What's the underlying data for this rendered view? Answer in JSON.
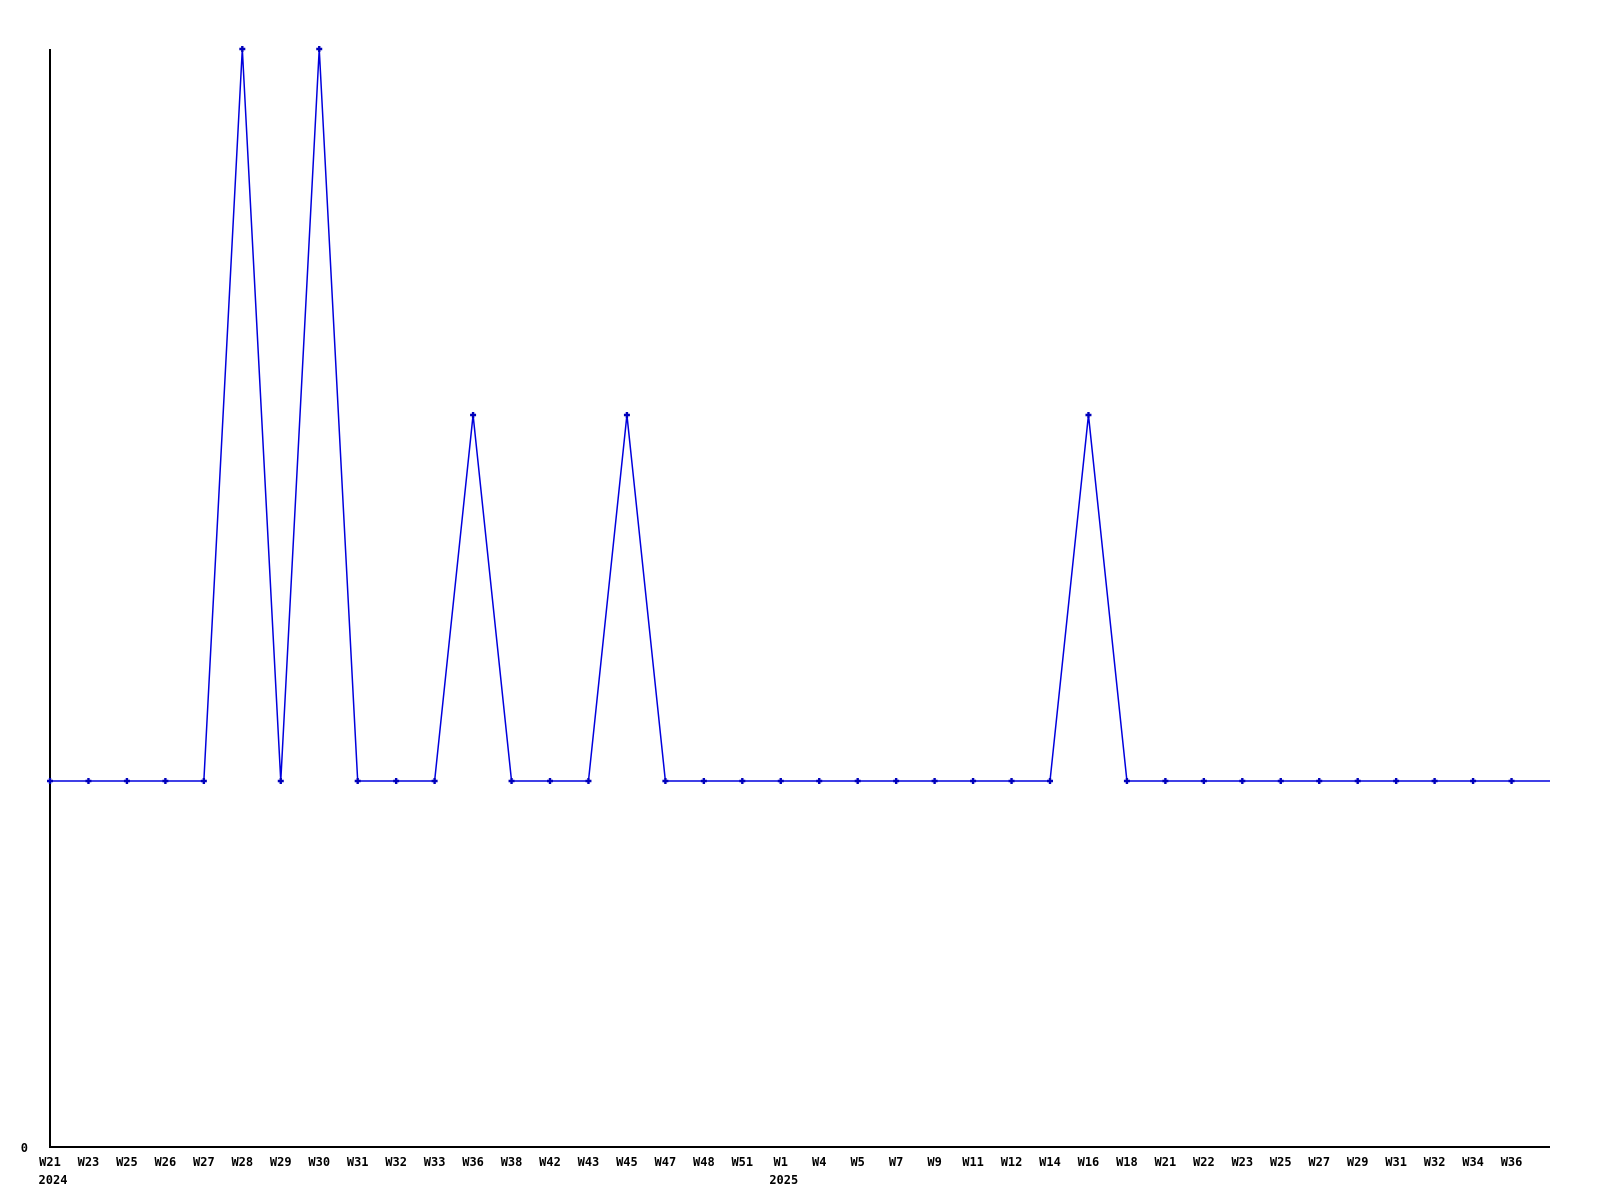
{
  "page": {
    "background": "#ffffff"
  },
  "chart_data": {
    "type": "line",
    "title": "",
    "xlabel": "",
    "ylabel": "",
    "ylim": [
      0,
      3
    ],
    "grid": false,
    "legend": null,
    "line_color": "#0000dd",
    "marker_color": "#0000bb",
    "axis_color": "#000000",
    "text_color": "#000000",
    "y_tick_labels": [
      "0"
    ],
    "categories": [
      "W21",
      "W23",
      "W25",
      "W26",
      "W27",
      "W28",
      "W29",
      "W30",
      "W31",
      "W32",
      "W33",
      "W36",
      "W38",
      "W42",
      "W43",
      "W45",
      "W47",
      "W48",
      "W51",
      "W1",
      "W4",
      "W5",
      "W7",
      "W9",
      "W11",
      "W12",
      "W14",
      "W16",
      "W18",
      "W21",
      "W22",
      "W23",
      "W25",
      "W27",
      "W29",
      "W31",
      "W32",
      "W34",
      "W36",
      ""
    ],
    "year_labels": [
      {
        "index": 0,
        "text": "2024"
      },
      {
        "index": 19,
        "text": "2025"
      }
    ],
    "values": [
      1,
      1,
      1,
      1,
      1,
      3,
      1,
      3,
      1,
      1,
      1,
      2,
      1,
      1,
      1,
      2,
      1,
      1,
      1,
      1,
      1,
      1,
      1,
      1,
      1,
      1,
      1,
      2,
      1,
      1,
      1,
      1,
      1,
      1,
      1,
      1,
      1,
      1,
      1,
      1
    ],
    "has_marker": [
      true,
      true,
      true,
      true,
      true,
      true,
      true,
      true,
      true,
      true,
      true,
      true,
      true,
      true,
      true,
      true,
      true,
      true,
      true,
      true,
      true,
      true,
      true,
      true,
      true,
      true,
      true,
      true,
      true,
      true,
      true,
      true,
      true,
      true,
      true,
      true,
      true,
      true,
      true,
      false
    ]
  }
}
